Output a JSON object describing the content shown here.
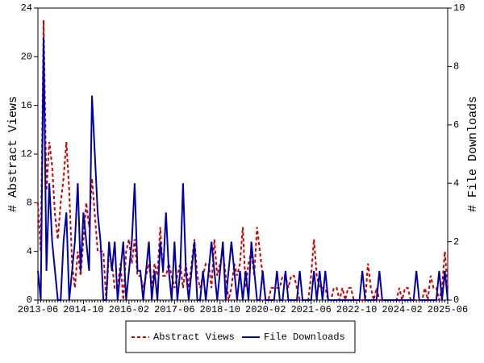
{
  "chart_data": {
    "type": "line",
    "categories": [
      "2013-06",
      null,
      null,
      null,
      null,
      null,
      null,
      null,
      null,
      null,
      null,
      null,
      null,
      null,
      null,
      null,
      "2014-10",
      null,
      null,
      null,
      null,
      null,
      null,
      null,
      null,
      null,
      null,
      null,
      null,
      null,
      null,
      null,
      "2016-02",
      null,
      null,
      null,
      null,
      null,
      null,
      null,
      null,
      null,
      null,
      null,
      null,
      null,
      null,
      null,
      "2017-06",
      null,
      null,
      null,
      null,
      null,
      null,
      null,
      null,
      null,
      null,
      null,
      null,
      null,
      null,
      null,
      "2018-10",
      null,
      null,
      null,
      null,
      null,
      null,
      null,
      null,
      null,
      null,
      null,
      null,
      null,
      null,
      null,
      "2020-02",
      null,
      null,
      null,
      null,
      null,
      null,
      null,
      null,
      null,
      null,
      null,
      null,
      null,
      null,
      null,
      "2021-06",
      null,
      null,
      null,
      null,
      null,
      null,
      null,
      null,
      null,
      null,
      null,
      null,
      null,
      null,
      null,
      "2022-10",
      null,
      null,
      null,
      null,
      null,
      null,
      null,
      null,
      null,
      null,
      null,
      null,
      null,
      null,
      null,
      "2024-02",
      null,
      null,
      null,
      null,
      null,
      null,
      null,
      null,
      null,
      null,
      null,
      null,
      null,
      null,
      null,
      "2025-06"
    ],
    "series": [
      {
        "name": "Abstract Views",
        "color": "#cc0000",
        "dashed": true,
        "values": [
          8,
          4,
          23,
          9,
          13,
          11,
          7,
          5,
          8,
          10,
          13,
          9,
          3,
          1,
          4,
          2,
          5,
          8,
          6,
          10,
          7,
          4,
          4,
          4,
          0,
          4,
          3,
          1,
          1,
          3,
          0,
          4,
          5,
          3,
          5,
          2,
          2,
          1,
          2,
          3,
          1,
          3,
          2,
          6,
          2,
          2,
          3,
          2,
          1,
          2,
          3,
          1,
          3,
          1,
          3,
          5,
          2,
          1,
          2,
          3,
          3,
          1,
          5,
          2,
          3,
          4,
          2,
          0,
          1,
          3,
          2,
          3,
          6,
          1,
          3,
          4,
          2,
          6,
          4,
          2,
          0,
          0,
          1,
          1,
          1,
          1,
          2,
          2,
          1,
          2,
          2,
          1,
          0,
          0,
          0,
          0,
          2,
          5,
          2,
          1,
          1,
          1,
          0,
          0,
          1,
          1,
          0,
          1,
          0,
          1,
          1,
          0,
          0,
          0,
          0,
          0,
          3,
          1,
          0,
          1,
          0,
          0,
          0,
          0,
          0,
          0,
          0,
          1,
          0,
          1,
          1,
          0,
          0,
          0,
          0,
          0,
          1,
          0,
          2,
          1,
          1,
          0,
          1,
          4,
          1
        ]
      },
      {
        "name": "File Downloads",
        "color": "#0000aa",
        "axis": "y2",
        "values": [
          1,
          0,
          9,
          1,
          4,
          2,
          1,
          0,
          0,
          2,
          3,
          0,
          1,
          2,
          4,
          1,
          3,
          2,
          1,
          7,
          5,
          3,
          2,
          0,
          0,
          2,
          1,
          2,
          0,
          1,
          2,
          0,
          1,
          2,
          4,
          1,
          1,
          0,
          1,
          2,
          0,
          1,
          0,
          2,
          1,
          3,
          1,
          0,
          2,
          0,
          1,
          4,
          1,
          0,
          1,
          2,
          0,
          0,
          1,
          0,
          1,
          2,
          1,
          0,
          1,
          2,
          0,
          1,
          2,
          1,
          0,
          1,
          0,
          1,
          0,
          2,
          1,
          0,
          0,
          1,
          0,
          0,
          0,
          0,
          1,
          0,
          0,
          1,
          0,
          0,
          0,
          0,
          1,
          0,
          0,
          0,
          0,
          1,
          0,
          1,
          0,
          1,
          0,
          0,
          0,
          0,
          0,
          0,
          0,
          0,
          0,
          0,
          0,
          0,
          1,
          0,
          0,
          0,
          0,
          0,
          1,
          0,
          0,
          0,
          0,
          0,
          0,
          0,
          0,
          0,
          0,
          0,
          0,
          1,
          0,
          0,
          0,
          0,
          0,
          0,
          0,
          1,
          0,
          1,
          0
        ]
      }
    ],
    "ylabel": "# Abstract Views",
    "y2label": "# File Downloads",
    "ylim": [
      0,
      24
    ],
    "yticks": [
      0,
      4,
      8,
      12,
      16,
      20,
      24
    ],
    "y2lim": [
      0,
      10
    ],
    "y2ticks": [
      0,
      2,
      4,
      6,
      8,
      10
    ],
    "grid": false,
    "legend": "bottom"
  }
}
